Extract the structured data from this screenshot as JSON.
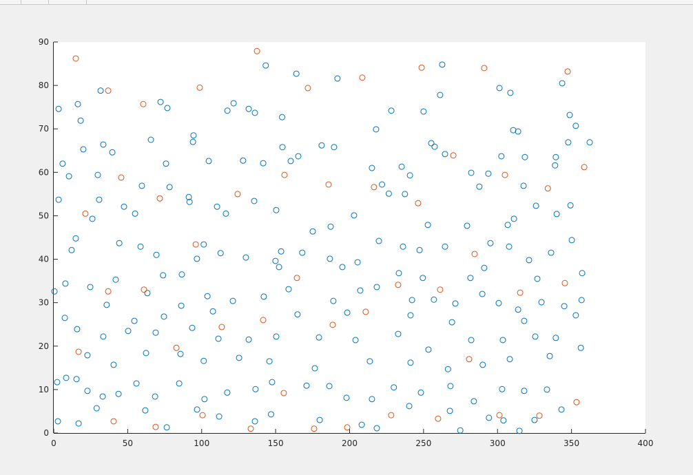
{
  "chart_data": {
    "type": "scatter",
    "xlim": [
      0,
      400
    ],
    "xticks": [
      0,
      50,
      100,
      150,
      200,
      250,
      300,
      350,
      400
    ],
    "ylim": [
      0,
      90
    ],
    "yticks": [
      0,
      10,
      20,
      30,
      40,
      50,
      60,
      70,
      80,
      90
    ],
    "series": [
      {
        "color": "#0072bd",
        "x": [
          143.3,
          164.0,
          191.8,
          262.6,
          31.7,
          16.3,
          72.2,
          76.8,
          117.4,
          121.6,
          131.8,
          136.0,
          154.4,
          228.2,
          250.0,
          261.2,
          301.3,
          308.7,
          343.7,
          348.8,
          352.9,
          310.6,
          313.9,
          217.9,
          18.2,
          3.3,
          33.5,
          39.6,
          20.0,
          65.7,
          94.5,
          94.1,
          104.8,
          181.1,
          189.5,
          154.6,
          165.3,
          255.2,
          257.5,
          264.5,
          302.6,
          318.5,
          339.4,
          347.8,
          362.3,
          6.0,
          10.3,
          29.8,
          75.9,
          128.0,
          141.6,
          160.2,
          215.1,
          235.2,
          240.8,
          282.2,
          293.8,
          338.9,
          3.3,
          30.7,
          59.6,
          78.3,
          91.3,
          91.8,
          110.4,
          116.4,
          135.5,
          150.4,
          175.1,
          187.2,
          203.0,
          221.9,
          226.5,
          237.4,
          252.9,
          279.4,
          287.7,
          306.9,
          311.1,
          317.6,
          326.0,
          340.0,
          349.3,
          26.1,
          47.5,
          14.9,
          55.0,
          44.3,
          58.7,
          69.4,
          101.4,
          112.8,
          96.8,
          129.9,
          149.9,
          153.7,
          168.0,
          186.7,
          205.4,
          219.8,
          236.1,
          247.3,
          264.5,
          295.2,
          307.8,
          321.3,
          336.2,
          350.2,
          357.2,
          7.9,
          12.1,
          41.9,
          73.9,
          86.6,
          152.3,
          195.1,
          233.3,
          249.5,
          281.7,
          291.0,
          326.9,
          0.5,
          24.7,
          35.8,
          63.3,
          86.2,
          103.9,
          121.1,
          142.0,
          158.8,
          189.0,
          207.2,
          218.4,
          242.2,
          257.0,
          271.5,
          289.7,
          300.8,
          313.9,
          329.7,
          345.1,
          356.8,
          7.5,
          54.5,
          74.5,
          107.6,
          164.8,
          198.4,
          241.2,
          269.2,
          318.0,
          352.9,
          15.8,
          33.5,
          50.3,
          68.9,
          93.6,
          111.3,
          131.8,
          150.4,
          179.3,
          204.0,
          232.8,
          253.3,
          282.2,
          303.6,
          325.5,
          339.4,
          22.8,
          40.5,
          62.4,
          85.7,
          101.4,
          125.3,
          145.8,
          176.5,
          213.7,
          241.2,
          266.5,
          290.0,
          308.3,
          335.3,
          356.3,
          2.3,
          8.4,
          15.4,
          22.8,
          33.1,
          43.8,
          55.9,
          68.5,
          84.8,
          101.9,
          117.3,
          136.4,
          147.6,
          170.9,
          186.3,
          197.9,
          215.1,
          229.9,
          248.2,
          268.2,
          284.0,
          303.1,
          318.0,
          333.4,
          343.2,
          2.8,
          16.8,
          29.0,
          61.9,
          76.4,
          96.9,
          111.8,
          136.0,
          146.9,
          179.8,
          208.2,
          218.4,
          240.3,
          267.8,
          274.8,
          294.2,
          304.0,
          314.8,
          325.0
        ],
        "y": [
          84.6,
          82.7,
          81.6,
          84.8,
          78.8,
          75.7,
          76.2,
          74.8,
          74.2,
          75.9,
          74.6,
          73.7,
          72.7,
          74.2,
          74.0,
          77.8,
          79.4,
          78.3,
          80.5,
          73.2,
          70.7,
          69.7,
          69.4,
          69.9,
          71.9,
          74.6,
          66.4,
          64.6,
          65.3,
          67.5,
          68.5,
          67.0,
          62.6,
          66.2,
          65.8,
          65.8,
          63.7,
          66.7,
          65.9,
          64.2,
          63.7,
          63.5,
          63.5,
          66.9,
          66.9,
          62.0,
          59.1,
          59.4,
          62.0,
          62.7,
          62.1,
          62.6,
          61.0,
          61.3,
          59.3,
          59.9,
          59.7,
          61.6,
          53.7,
          53.7,
          56.9,
          56.6,
          54.3,
          53.2,
          52.1,
          50.5,
          53.4,
          51.3,
          46.4,
          47.5,
          50.1,
          57.2,
          55.1,
          55.0,
          47.9,
          47.7,
          56.7,
          47.9,
          49.3,
          56.9,
          52.3,
          50.4,
          52.4,
          49.3,
          52.1,
          44.8,
          50.5,
          43.7,
          42.9,
          41.0,
          43.4,
          41.4,
          40.1,
          40.4,
          39.6,
          41.8,
          41.5,
          40.1,
          39.3,
          44.2,
          42.9,
          42.1,
          42.9,
          43.7,
          42.9,
          39.8,
          41.5,
          44.4,
          36.8,
          34.4,
          42.1,
          35.3,
          36.3,
          36.5,
          38.2,
          38.2,
          36.8,
          35.7,
          35.7,
          38.0,
          35.5,
          32.6,
          33.6,
          29.5,
          32.2,
          29.3,
          31.5,
          30.4,
          31.4,
          33.1,
          30.4,
          32.8,
          33.6,
          30.6,
          30.7,
          29.8,
          32.0,
          29.9,
          28.4,
          30.1,
          29.2,
          30.6,
          26.5,
          25.8,
          26.8,
          28.0,
          27.3,
          27.7,
          27.1,
          25.5,
          25.8,
          27.1,
          23.9,
          22.2,
          23.5,
          23.1,
          24.2,
          21.7,
          21.5,
          22.2,
          22.0,
          21.4,
          22.8,
          19.2,
          21.4,
          21.4,
          22.2,
          21.9,
          17.9,
          15.7,
          18.4,
          18.2,
          16.6,
          17.3,
          16.5,
          14.9,
          16.5,
          16.2,
          14.7,
          15.7,
          17.0,
          17.7,
          19.6,
          11.7,
          12.7,
          12.4,
          9.7,
          8.4,
          9.0,
          11.4,
          8.4,
          11.4,
          7.8,
          9.3,
          10.1,
          11.7,
          10.9,
          10.8,
          8.1,
          7.8,
          10.5,
          9.3,
          10.8,
          7.3,
          10.1,
          9.7,
          10.0,
          5.4,
          2.7,
          2.2,
          5.7,
          5.2,
          1.3,
          5.4,
          3.8,
          2.7,
          4.3,
          3.0,
          1.9,
          1.1,
          6.2,
          5.1,
          0.6,
          3.5,
          2.9,
          0.5,
          3.0
        ]
      },
      {
        "color": "#d95319",
        "x": [
          14.9,
          137.4,
          36.8,
          98.7,
          171.8,
          208.6,
          248.7,
          291.0,
          347.4,
          60.5,
          71.7,
          124.3,
          156.0,
          185.8,
          216.5,
          246.3,
          270.1,
          305.0,
          334.0,
          358.6,
          21.4,
          45.6,
          96.0,
          36.8,
          61.0,
          164.4,
          232.8,
          261.2,
          284.5,
          315.3,
          345.5,
          113.6,
          141.6,
          188.6,
          210.9,
          16.8,
          82.9,
          280.8,
          155.5,
          353.4,
          40.5,
          68.9,
          100.6,
          133.2,
          176.0,
          198.4,
          228.1,
          259.8,
          301.3,
          328.3
        ],
        "y": [
          86.2,
          87.9,
          78.8,
          79.5,
          79.4,
          81.8,
          84.1,
          84.0,
          83.2,
          75.7,
          54.0,
          55.0,
          59.4,
          57.2,
          56.6,
          52.9,
          63.9,
          59.4,
          56.3,
          61.2,
          50.5,
          58.8,
          43.4,
          32.6,
          33.0,
          35.7,
          34.1,
          33.0,
          41.2,
          32.3,
          34.5,
          24.4,
          26.0,
          24.9,
          27.9,
          18.7,
          19.6,
          17.0,
          9.2,
          7.1,
          2.7,
          1.4,
          4.1,
          1.0,
          1.0,
          1.3,
          4.1,
          3.3,
          4.1,
          4.0
        ]
      }
    ]
  }
}
